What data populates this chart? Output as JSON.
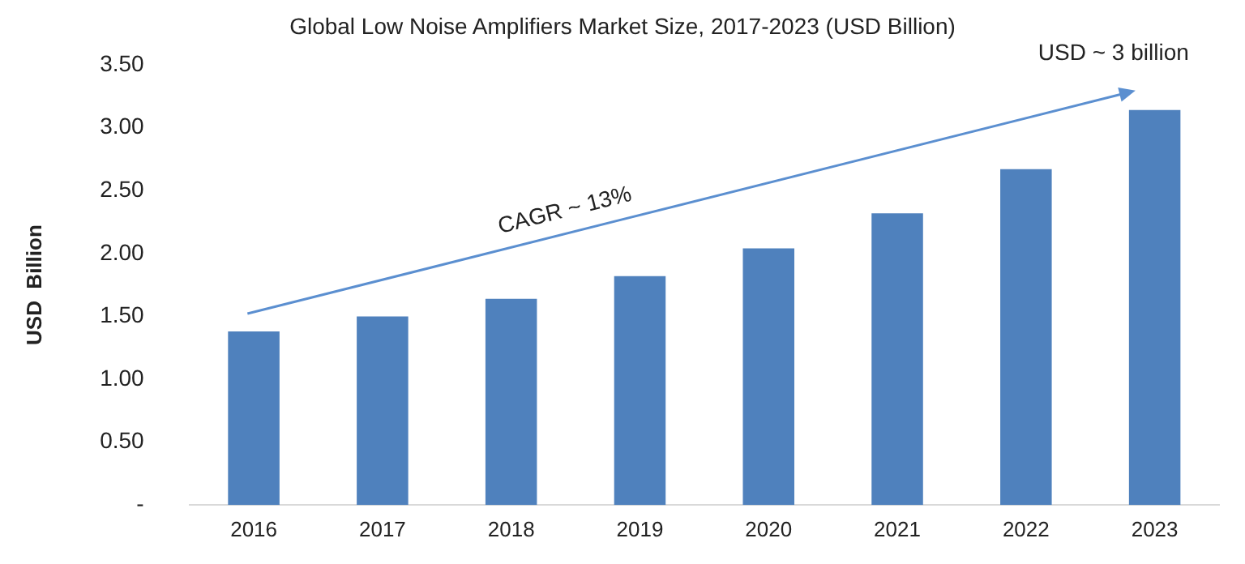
{
  "chart_data": {
    "type": "bar",
    "title": "Global Low Noise Amplifiers Market Size, 2017-2023 (USD Billion)",
    "ylabel": "USD  Billion",
    "categories": [
      "2016",
      "2017",
      "2018",
      "2019",
      "2020",
      "2021",
      "2022",
      "2023"
    ],
    "values": [
      1.38,
      1.5,
      1.64,
      1.82,
      2.04,
      2.32,
      2.67,
      3.14
    ],
    "color": "#4f81bd",
    "ylim": [
      0,
      3.5
    ],
    "yticks": [
      {
        "value": 0,
        "label": "-"
      },
      {
        "value": 0.5,
        "label": "0.50"
      },
      {
        "value": 1,
        "label": "1.00"
      },
      {
        "value": 1.5,
        "label": "1.50"
      },
      {
        "value": 2,
        "label": "2.00"
      },
      {
        "value": 2.5,
        "label": "2.50"
      },
      {
        "value": 3,
        "label": "3.00"
      },
      {
        "value": 3.5,
        "label": "3.50"
      }
    ],
    "grid": false,
    "legend": false,
    "annotations": [
      "CAGR ~ 13%",
      "USD ~ 3 billion"
    ]
  }
}
